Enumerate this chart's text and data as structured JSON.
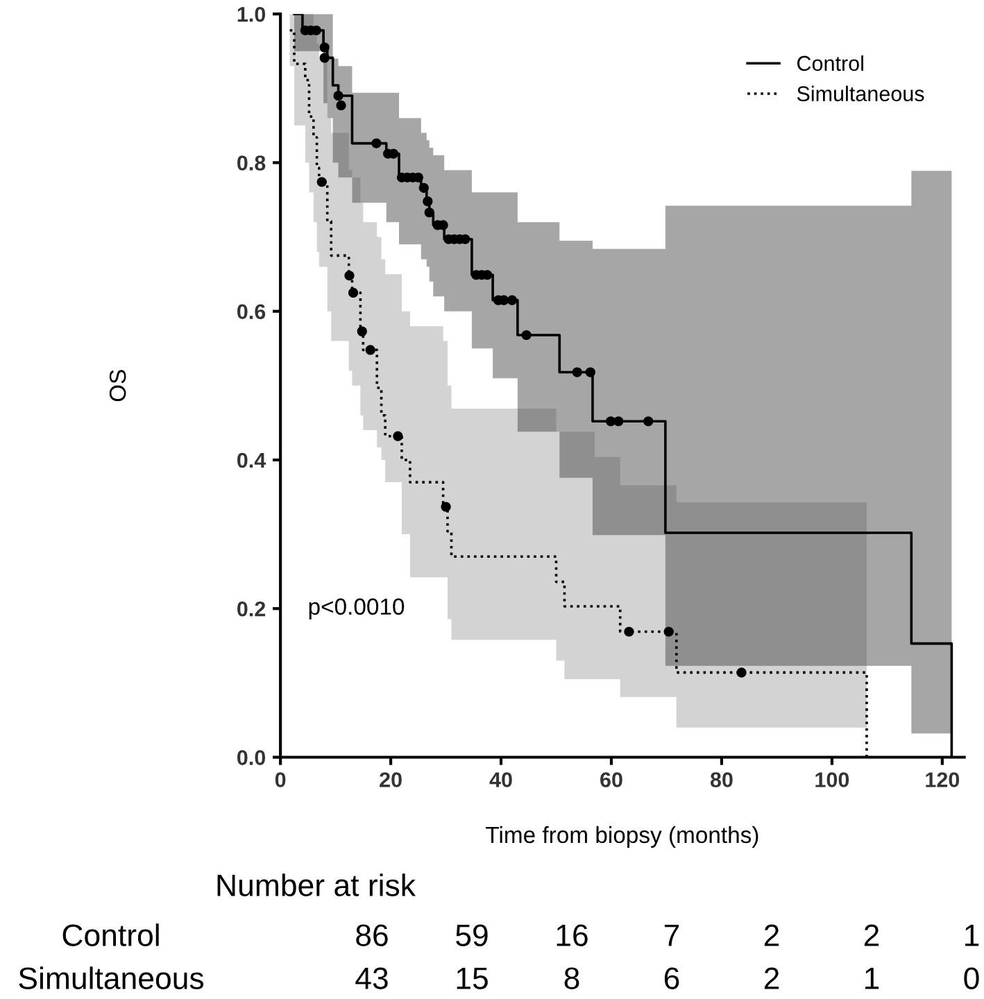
{
  "chart_data": {
    "type": "step",
    "xlabel": "Time from biopsy (months)",
    "ylabel": "OS",
    "xlim": [
      0,
      124
    ],
    "xticks": [
      0,
      20,
      40,
      60,
      80,
      100,
      120
    ],
    "ylim": [
      0,
      1
    ],
    "yticks": [
      {
        "value": 0,
        "label": "0.0"
      },
      {
        "value": 0.2,
        "label": "0.2"
      },
      {
        "value": 0.4,
        "label": "0.4"
      },
      {
        "value": 0.6,
        "label": "0.6"
      },
      {
        "value": 0.8,
        "label": "0.8"
      },
      {
        "value": 1,
        "label": "1.0"
      }
    ],
    "grid": false,
    "legend": "top right",
    "series": [
      {
        "name": "Control",
        "color": "#000000",
        "line_style": "solid",
        "x": [
          2.5,
          4,
          7.8,
          8.5,
          9.5,
          10.5,
          13,
          19.2,
          21.5,
          25.5,
          26.5,
          27,
          27.7,
          29.7,
          34.7,
          38.5,
          43,
          50.6,
          56.6,
          69.8,
          114.4,
          121.7
        ],
        "values": [
          1.0,
          0.978,
          0.955,
          0.941,
          0.904,
          0.89,
          0.826,
          0.812,
          0.78,
          0.766,
          0.748,
          0.733,
          0.716,
          0.697,
          0.649,
          0.615,
          0.568,
          0.518,
          0.452,
          0.302,
          0.153,
          0
        ],
        "lower": [
          0.95,
          0.95,
          0.88,
          0.86,
          0.8,
          0.78,
          0.746,
          0.72,
          0.69,
          0.67,
          0.66,
          0.64,
          0.62,
          0.6,
          0.55,
          0.51,
          0.438,
          0.376,
          0.299,
          0.123,
          0.032,
          0.032
        ],
        "upper": [
          1.0,
          1.0,
          1.0,
          1.0,
          0.94,
          0.93,
          0.894,
          0.894,
          0.86,
          0.84,
          0.83,
          0.82,
          0.81,
          0.79,
          0.76,
          0.76,
          0.72,
          0.695,
          0.684,
          0.742,
          0.789,
          0.789
        ]
      },
      {
        "type": "scatter",
        "color": "#000000",
        "marker": "circle",
        "x": [
          4.5,
          5.5,
          6.5,
          8,
          8,
          10.5,
          11,
          17.4,
          19.5,
          20.5,
          22,
          23,
          24,
          25,
          26,
          26.7,
          27,
          28.5,
          29.5,
          30.5,
          31.5,
          32.5,
          33.5,
          35.5,
          36.5,
          37.5,
          39.5,
          40.5,
          42,
          44.6,
          53.8,
          56.2,
          59.9,
          61.3,
          66.7
        ],
        "values": [
          0.978,
          0.978,
          0.978,
          0.955,
          0.941,
          0.89,
          0.877,
          0.826,
          0.812,
          0.812,
          0.78,
          0.78,
          0.78,
          0.78,
          0.766,
          0.748,
          0.733,
          0.716,
          0.716,
          0.697,
          0.697,
          0.697,
          0.697,
          0.649,
          0.649,
          0.649,
          0.615,
          0.615,
          0.615,
          0.568,
          0.518,
          0.518,
          0.452,
          0.452,
          0.452
        ]
      },
      {
        "name": "Simultaneous",
        "color": "#000000",
        "line_style": "dotted",
        "x": [
          1.7,
          2.5,
          4.5,
          5.2,
          6,
          6.6,
          7,
          8.5,
          9.2,
          12.4,
          13,
          14.5,
          15,
          17.5,
          18.3,
          19,
          22,
          23.5,
          29.5,
          30.3,
          31,
          50,
          51.5,
          57,
          61.6,
          71.8,
          106.3
        ],
        "values": [
          0.978,
          0.933,
          0.911,
          0.862,
          0.834,
          0.793,
          0.774,
          0.721,
          0.675,
          0.648,
          0.625,
          0.573,
          0.548,
          0.497,
          0.46,
          0.432,
          0.4,
          0.37,
          0.337,
          0.304,
          0.27,
          0.236,
          0.203,
          0.203,
          0.169,
          0.114,
          0
        ],
        "lower": [
          0.93,
          0.85,
          0.8,
          0.76,
          0.72,
          0.68,
          0.66,
          0.6,
          0.56,
          0.52,
          0.5,
          0.46,
          0.44,
          0.417,
          0.4,
          0.37,
          0.3,
          0.242,
          0.242,
          0.186,
          0.158,
          0.13,
          0.105,
          0.105,
          0.081,
          0.04,
          0.04
        ],
        "upper": [
          1.0,
          1.0,
          1.0,
          1.0,
          0.98,
          0.96,
          0.94,
          0.86,
          0.84,
          0.79,
          0.78,
          0.746,
          0.72,
          0.7,
          0.67,
          0.65,
          0.6,
          0.58,
          0.56,
          0.5,
          0.469,
          0.438,
          0.438,
          0.404,
          0.366,
          0.343,
          0.343
        ]
      },
      {
        "type": "scatter",
        "color": "#000000",
        "marker": "circle",
        "x": [
          7.5,
          12.5,
          13.2,
          14.8,
          16.3,
          21.3,
          30,
          63.2,
          70.4,
          83.6
        ],
        "values": [
          0.774,
          0.648,
          0.625,
          0.573,
          0.548,
          0.432,
          0.337,
          0.169,
          0.169,
          0.114
        ]
      }
    ],
    "annotations": [
      "p<0.0010",
      "Number at risk",
      "Control",
      "86",
      "59",
      "16",
      "7",
      "2",
      "2",
      "1",
      "Simultaneous",
      "43",
      "15",
      "8",
      "6",
      "2",
      "1",
      "0"
    ]
  }
}
